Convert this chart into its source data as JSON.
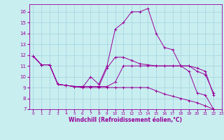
{
  "xlabel": "Windchill (Refroidissement éolien,°C)",
  "bg_color": "#c8eef0",
  "line_color": "#990099",
  "grid_color": "#a8d8e0",
  "xlim": [
    -0.5,
    23
  ],
  "ylim": [
    7,
    16.7
  ],
  "xticks": [
    0,
    1,
    2,
    3,
    4,
    5,
    6,
    7,
    8,
    9,
    10,
    11,
    12,
    13,
    14,
    15,
    16,
    17,
    18,
    19,
    20,
    21,
    22,
    23
  ],
  "yticks": [
    7,
    8,
    9,
    10,
    11,
    12,
    13,
    14,
    15,
    16
  ],
  "series": [
    [
      11.9,
      11.1,
      11.1,
      9.3,
      9.2,
      9.1,
      9.0,
      10.0,
      9.3,
      11.0,
      14.4,
      15.0,
      16.0,
      16.0,
      16.3,
      14.0,
      12.7,
      12.5,
      11.0,
      10.5,
      8.5,
      8.3,
      7.0
    ],
    [
      11.9,
      11.1,
      11.1,
      9.3,
      9.2,
      9.1,
      9.1,
      9.1,
      9.1,
      10.8,
      11.8,
      11.8,
      11.5,
      11.2,
      11.1,
      11.0,
      11.0,
      11.0,
      11.0,
      11.0,
      10.8,
      10.5,
      8.3
    ],
    [
      11.9,
      11.1,
      11.1,
      9.3,
      9.2,
      9.1,
      9.1,
      9.1,
      9.1,
      9.1,
      9.5,
      11.0,
      11.0,
      11.0,
      11.0,
      11.0,
      11.0,
      11.0,
      11.0,
      11.0,
      10.5,
      10.2,
      8.5
    ],
    [
      11.9,
      11.1,
      11.1,
      9.3,
      9.2,
      9.1,
      9.0,
      9.0,
      9.0,
      9.0,
      9.0,
      9.0,
      9.0,
      9.0,
      9.0,
      8.7,
      8.4,
      8.2,
      8.0,
      7.8,
      7.6,
      7.3,
      7.0
    ]
  ]
}
